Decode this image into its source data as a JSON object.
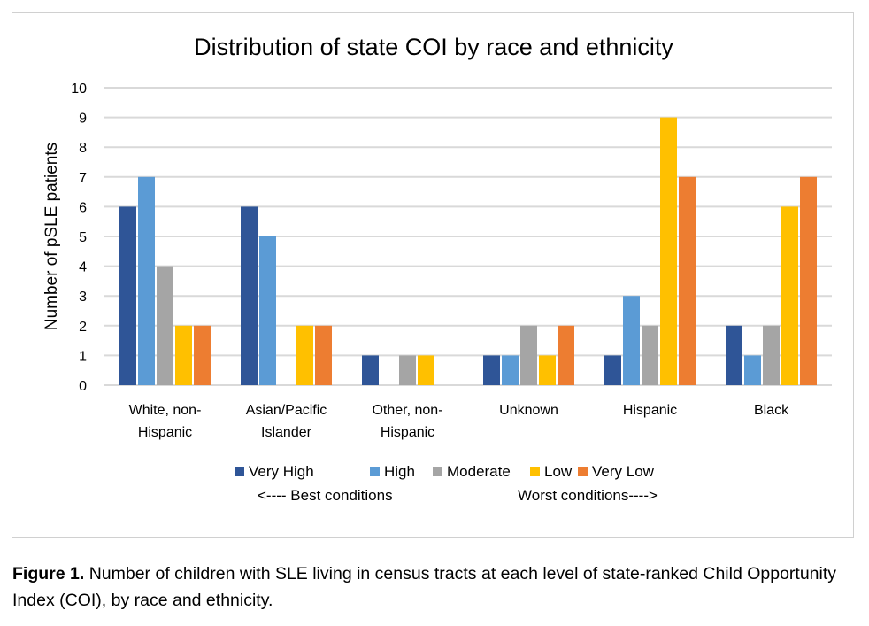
{
  "chart_data": {
    "type": "bar",
    "title": "Distribution of state COI by race and ethnicity",
    "xlabel": "",
    "ylabel": "Number of pSLE patients",
    "ylim": [
      0,
      10
    ],
    "yticks": [
      0,
      1,
      2,
      3,
      4,
      5,
      6,
      7,
      8,
      9,
      10
    ],
    "grid": true,
    "legend_placement": "bottom",
    "categories": [
      [
        "White, non-",
        "Hispanic"
      ],
      [
        "Asian/Pacific",
        "Islander"
      ],
      [
        "Other, non-",
        "Hispanic"
      ],
      [
        "Unknown"
      ],
      [
        "Hispanic"
      ],
      [
        "Black"
      ]
    ],
    "series": [
      {
        "name": "Very High",
        "color": "#2F5597",
        "values": [
          6,
          6,
          1,
          1,
          1,
          2
        ]
      },
      {
        "name": "High",
        "color": "#5B9BD5",
        "values": [
          7,
          5,
          0,
          1,
          3,
          1
        ]
      },
      {
        "name": "Moderate",
        "color": "#A5A5A5",
        "values": [
          4,
          0,
          1,
          2,
          2,
          2
        ]
      },
      {
        "name": "Low",
        "color": "#FFC000",
        "values": [
          2,
          2,
          1,
          1,
          9,
          6
        ]
      },
      {
        "name": "Very Low",
        "color": "#ED7D31",
        "values": [
          2,
          2,
          0,
          2,
          7,
          7
        ]
      }
    ],
    "annotations": {
      "best": "<---- Best conditions",
      "worst": "Worst conditions---->"
    }
  },
  "caption": {
    "label": "Figure 1.",
    "text": " Number of children with SLE living in census tracts at each level of state-ranked Child Opportunity Index (COI), by race and ethnicity."
  }
}
